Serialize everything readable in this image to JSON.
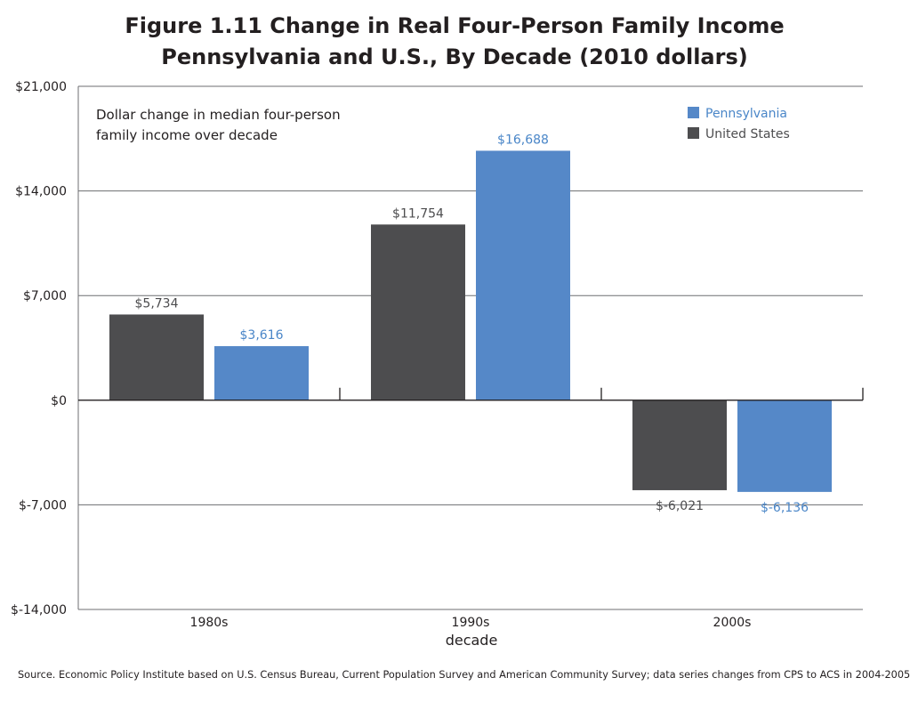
{
  "chart_data": {
    "type": "bar",
    "title_lines": [
      "Figure 1.11 Change in Real Four-Person Family Income",
      "Pennsylvania and U.S., By Decade (2010 dollars)"
    ],
    "annotation_lines": [
      "Dollar change in median four-person",
      "family income over decade"
    ],
    "xlabel": "decade",
    "ylabel": "",
    "categories": [
      "1980s",
      "1990s",
      "2000s"
    ],
    "ylim": [
      -14000,
      21000
    ],
    "yticks": [
      21000,
      14000,
      7000,
      0,
      -7000,
      -14000
    ],
    "ytick_labels": [
      "$21,000",
      "$14,000",
      "$7,000",
      "$0",
      "$-7,000",
      "$-14,000"
    ],
    "grid": true,
    "legend_position": "top-right",
    "legend_order": [
      "Pennsylvania",
      "United States"
    ],
    "series": [
      {
        "name": "United States",
        "color": "#4d4d4f",
        "label_color": "#4d4d4f",
        "values": [
          5734,
          11754,
          -6021
        ],
        "value_labels": [
          "$5,734",
          "$11,754",
          "$-6,021"
        ]
      },
      {
        "name": "Pennsylvania",
        "color": "#5588c8",
        "label_color": "#4a86c8",
        "values": [
          3616,
          16688,
          -6136
        ],
        "value_labels": [
          "$3,616",
          "$16,688",
          "$-6,136"
        ]
      }
    ],
    "source": "Source. Economic Policy Institute based on U.S. Census Bureau, Current Population Survey and American Community Survey; data series changes from CPS to ACS in 2004-2005"
  }
}
